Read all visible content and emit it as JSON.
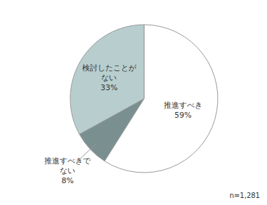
{
  "chart_data": {
    "type": "pie",
    "categories": [
      "推進すべき\n59%",
      "推進すべきで\nない\n8%",
      "検討したことが\nない\n33%"
    ],
    "values": [
      59,
      8,
      33
    ],
    "colors": [
      "#ffffff",
      "#7a9090",
      "#b8cece"
    ],
    "annotations": [
      "n=1,281"
    ]
  }
}
